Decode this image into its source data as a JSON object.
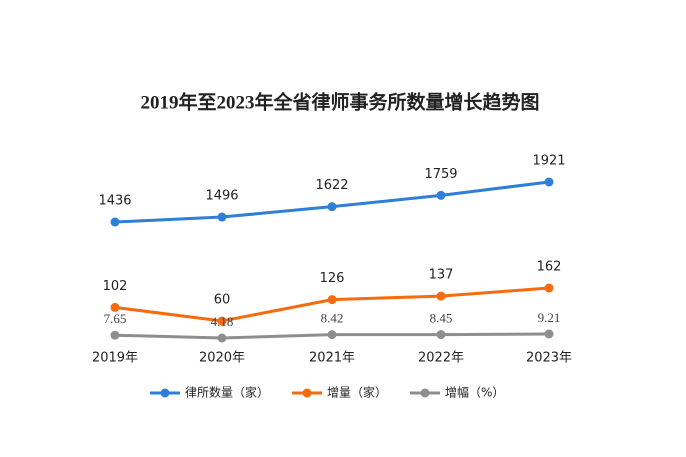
{
  "chart_data": {
    "type": "line",
    "title": "2019年至2023年全省律师事务所数量增长趋势图",
    "categories": [
      "2019年",
      "2020年",
      "2021年",
      "2022年",
      "2023年"
    ],
    "series": [
      {
        "name": "律所数量（家）",
        "color": "#2f7ed8",
        "values": [
          1436,
          1496,
          1622,
          1759,
          1921
        ]
      },
      {
        "name": "增量（家）",
        "color": "#f66b0e",
        "values": [
          102,
          60,
          126,
          137,
          162
        ]
      },
      {
        "name": "增幅（%）",
        "color": "#8e8e8e",
        "values": [
          7.65,
          4.18,
          8.42,
          8.45,
          9.21
        ]
      }
    ]
  }
}
